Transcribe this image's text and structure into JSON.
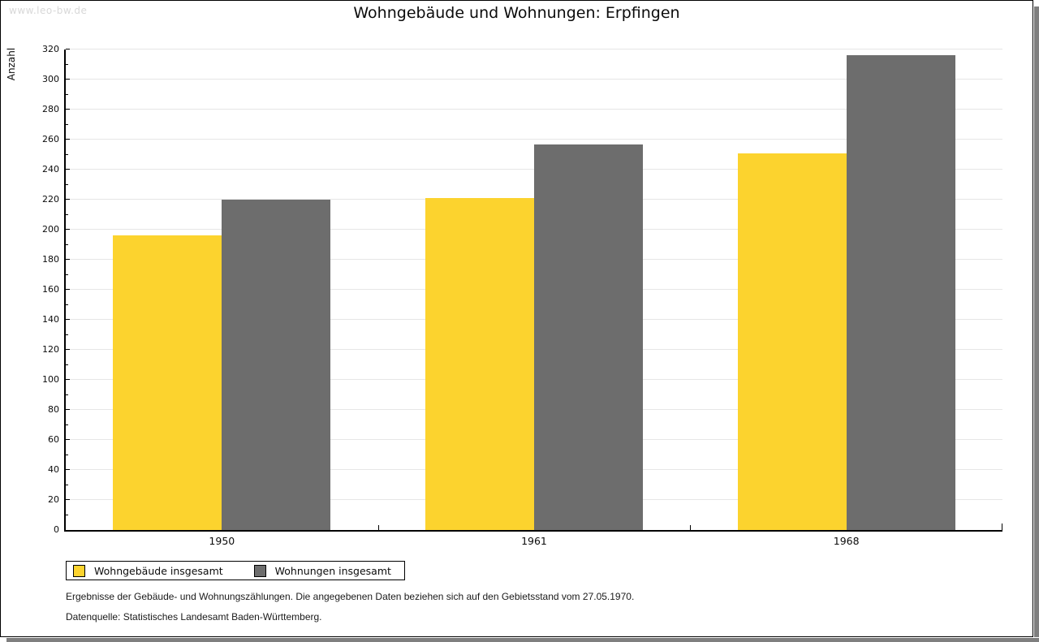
{
  "watermark": "www.leo-bw.de",
  "chart_data": {
    "type": "bar",
    "title": "Wohngebäude und Wohnungen: Erpfingen",
    "ylabel": "Anzahl",
    "xlabel": "",
    "categories": [
      "1950",
      "1961",
      "1968"
    ],
    "series": [
      {
        "name": "Wohngebäude insgesamt",
        "color": "#fcd32e",
        "values": [
          196,
          221,
          251
        ]
      },
      {
        "name": "Wohnungen insgesamt",
        "color": "#6d6d6d",
        "values": [
          220,
          257,
          316
        ]
      }
    ],
    "ylim": [
      0,
      320
    ],
    "ytick_step": 20,
    "minor_tick_step": 10,
    "grid": true,
    "legend_position": "bottom-left"
  },
  "footnotes": [
    "Ergebnisse der Gebäude- und Wohnungszählungen. Die angegebenen Daten beziehen sich auf den Gebietsstand vom 27.05.1970.",
    "Datenquelle: Statistisches Landesamt Baden-Württemberg."
  ],
  "colors": {
    "grid": "#e6e6e6",
    "axis": "#000000",
    "shadow": "#7f7f7f",
    "watermark": "#d8d8d8",
    "background": "#ffffff"
  }
}
